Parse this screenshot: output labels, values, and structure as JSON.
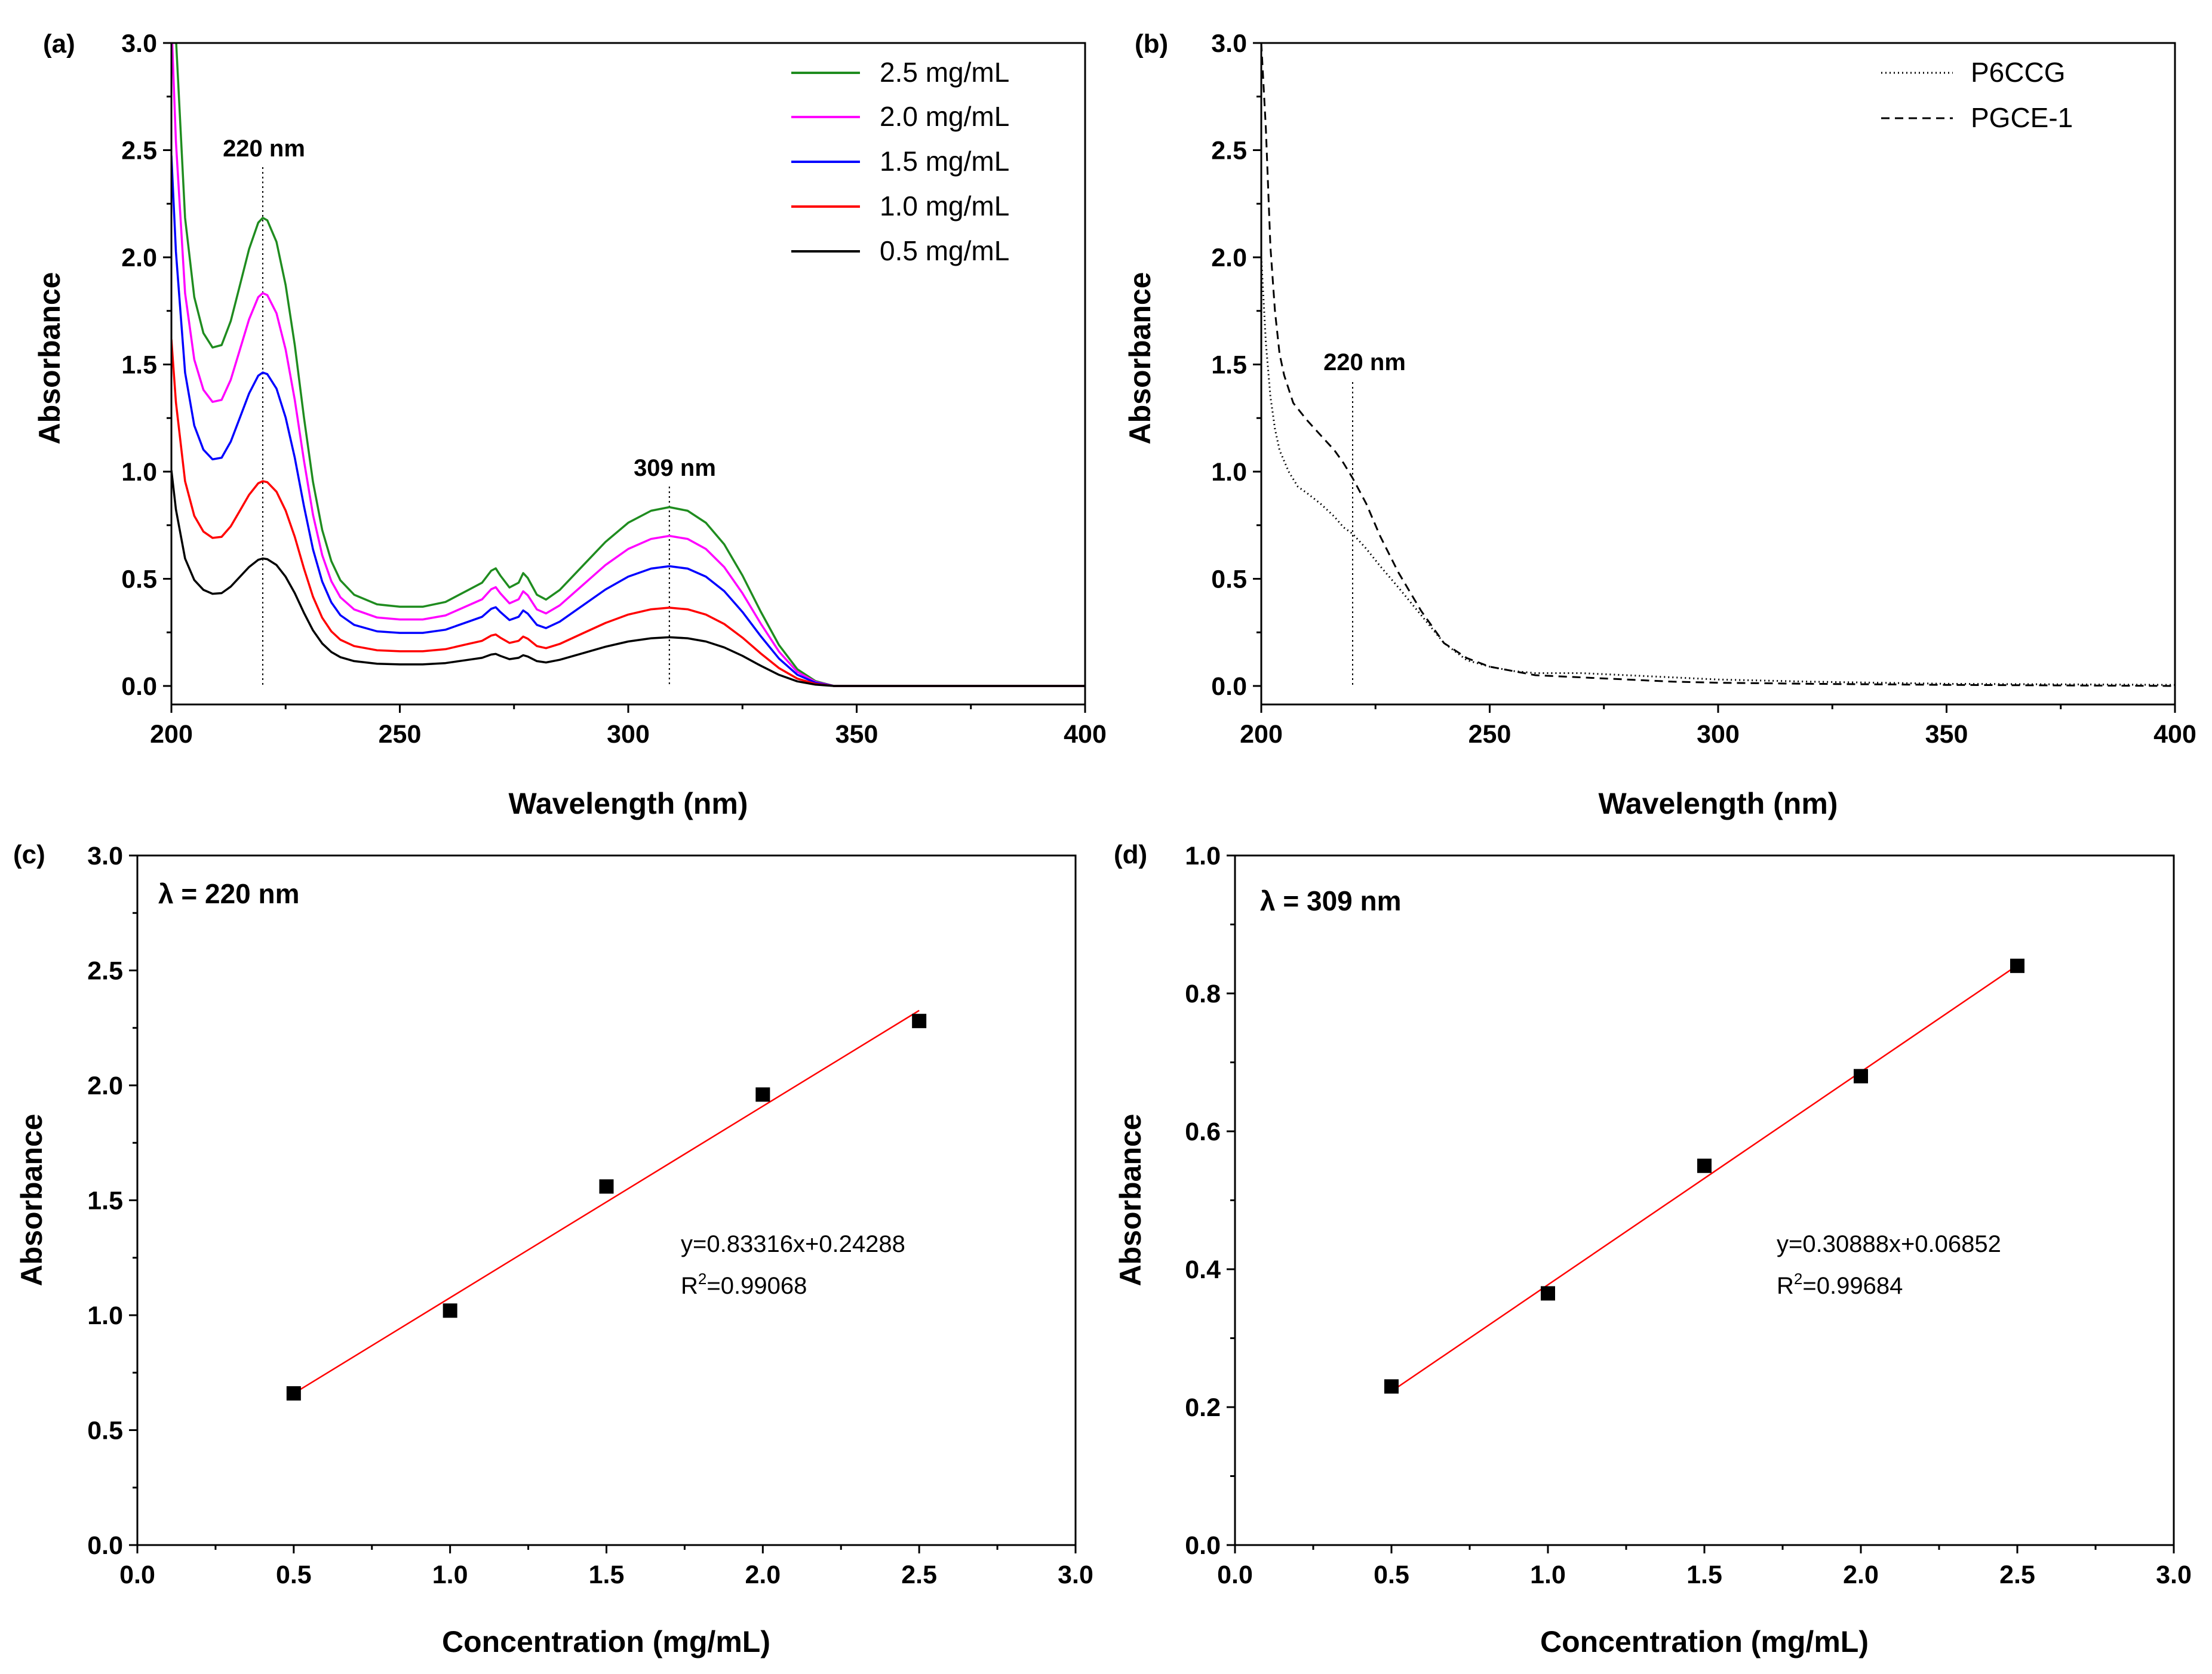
{
  "figure": {
    "colors": {
      "s25": "#1f8c1f",
      "s20": "#ff00ff",
      "s15": "#0000ff",
      "s10": "#ff0000",
      "s05": "#000000",
      "fit": "#ff0000",
      "marker": "#000000"
    }
  },
  "chart_data": [
    {
      "panel": "(a)",
      "type": "line",
      "xlabel": "Wavelength (nm)",
      "ylabel": "Absorbance",
      "xlim": [
        200,
        400
      ],
      "ylim": [
        0,
        3.0
      ],
      "xticks": [
        "200",
        "250",
        "300",
        "350",
        "400"
      ],
      "yticks": [
        "0.0",
        "0.5",
        "1.0",
        "1.5",
        "2.0",
        "2.5",
        "3.0"
      ],
      "legend_position": "top-right",
      "annotations": [
        {
          "text": "220 nm",
          "x": 220
        },
        {
          "text": "309 nm",
          "x": 309
        }
      ],
      "base_shape": [
        [
          200,
          3.3
        ],
        [
          201,
          2.7
        ],
        [
          203,
          1.95
        ],
        [
          205,
          1.62
        ],
        [
          207,
          1.47
        ],
        [
          209,
          1.41
        ],
        [
          211,
          1.42
        ],
        [
          213,
          1.52
        ],
        [
          215,
          1.67
        ],
        [
          217,
          1.82
        ],
        [
          219,
          1.93
        ],
        [
          220,
          1.95
        ],
        [
          221,
          1.94
        ],
        [
          223,
          1.85
        ],
        [
          225,
          1.67
        ],
        [
          227,
          1.42
        ],
        [
          229,
          1.12
        ],
        [
          231,
          0.85
        ],
        [
          233,
          0.65
        ],
        [
          235,
          0.52
        ],
        [
          237,
          0.44
        ],
        [
          240,
          0.38
        ],
        [
          245,
          0.34
        ],
        [
          250,
          0.33
        ],
        [
          255,
          0.33
        ],
        [
          260,
          0.35
        ],
        [
          265,
          0.4
        ],
        [
          268,
          0.43
        ],
        [
          270,
          0.48
        ],
        [
          271,
          0.49
        ],
        [
          272,
          0.46
        ],
        [
          274,
          0.41
        ],
        [
          276,
          0.43
        ],
        [
          277,
          0.47
        ],
        [
          278,
          0.45
        ],
        [
          280,
          0.38
        ],
        [
          282,
          0.36
        ],
        [
          285,
          0.4
        ],
        [
          290,
          0.5
        ],
        [
          295,
          0.6
        ],
        [
          300,
          0.68
        ],
        [
          305,
          0.73
        ],
        [
          309,
          0.745
        ],
        [
          313,
          0.73
        ],
        [
          317,
          0.68
        ],
        [
          321,
          0.59
        ],
        [
          325,
          0.46
        ],
        [
          329,
          0.31
        ],
        [
          333,
          0.17
        ],
        [
          337,
          0.07
        ],
        [
          341,
          0.02
        ],
        [
          345,
          0.0
        ],
        [
          350,
          0.0
        ],
        [
          400,
          0.0
        ]
      ],
      "series": [
        {
          "name": "2.5 mg/mL",
          "color_key": "s25",
          "scale": 1.12
        },
        {
          "name": "2.0 mg/mL",
          "color_key": "s20",
          "scale": 0.94
        },
        {
          "name": "1.5 mg/mL",
          "color_key": "s15",
          "scale": 0.75
        },
        {
          "name": "1.0 mg/mL",
          "color_key": "s10",
          "scale": 0.49
        },
        {
          "name": "0.5 mg/mL",
          "color_key": "s05",
          "scale": 0.305
        }
      ]
    },
    {
      "panel": "(b)",
      "type": "line",
      "xlabel": "Wavelength (nm)",
      "ylabel": "Absorbance",
      "xlim": [
        200,
        400
      ],
      "ylim": [
        0,
        3.0
      ],
      "xticks": [
        "200",
        "250",
        "300",
        "350",
        "400"
      ],
      "yticks": [
        "0.0",
        "0.5",
        "1.0",
        "1.5",
        "2.0",
        "2.5",
        "3.0"
      ],
      "legend_position": "top-right",
      "annotations": [
        {
          "text": "220 nm",
          "x": 220
        }
      ],
      "series": [
        {
          "name": "P6CCG",
          "style": "dotted",
          "x": [
            200,
            201,
            202,
            203,
            204,
            206,
            208,
            210,
            213,
            216,
            218,
            220,
            223,
            226,
            230,
            235,
            240,
            245,
            250,
            255,
            260,
            270,
            280,
            290,
            300,
            320,
            350,
            400
          ],
          "y": [
            2.0,
            1.6,
            1.35,
            1.2,
            1.1,
            1.0,
            0.93,
            0.9,
            0.85,
            0.79,
            0.74,
            0.71,
            0.64,
            0.56,
            0.46,
            0.33,
            0.2,
            0.12,
            0.09,
            0.07,
            0.06,
            0.06,
            0.05,
            0.04,
            0.03,
            0.02,
            0.01,
            0.005
          ]
        },
        {
          "name": "PGCE-1",
          "style": "dashed",
          "x": [
            200,
            201,
            202,
            203,
            204,
            205,
            207,
            210,
            213,
            216,
            218,
            220,
            223,
            226,
            230,
            235,
            240,
            245,
            250,
            255,
            260,
            270,
            280,
            290,
            300,
            320,
            350,
            400
          ],
          "y": [
            3.0,
            2.6,
            2.05,
            1.75,
            1.55,
            1.45,
            1.32,
            1.24,
            1.17,
            1.1,
            1.04,
            0.97,
            0.85,
            0.7,
            0.53,
            0.35,
            0.2,
            0.13,
            0.09,
            0.07,
            0.05,
            0.04,
            0.03,
            0.02,
            0.015,
            0.01,
            0.005,
            0.0
          ]
        }
      ]
    },
    {
      "panel": "(c)",
      "type": "scatter",
      "xlabel": "Concentration (mg/mL)",
      "ylabel": "Absorbance",
      "xlim": [
        0,
        3.0
      ],
      "ylim": [
        0,
        3.0
      ],
      "xticks": [
        "0.0",
        "0.5",
        "1.0",
        "1.5",
        "2.0",
        "2.5",
        "3.0"
      ],
      "yticks": [
        "0.0",
        "0.5",
        "1.0",
        "1.5",
        "2.0",
        "2.5",
        "3.0"
      ],
      "lambda_label": "λ = 220 nm",
      "equation": "y=0.83316x+0.24288",
      "r2_prefix": "R",
      "r2_sup": "2",
      "r2_value": "=0.99068",
      "x": [
        0.5,
        1.0,
        1.5,
        2.0,
        2.5
      ],
      "y": [
        0.66,
        1.02,
        1.56,
        1.96,
        2.28
      ],
      "fit": {
        "slope": 0.83316,
        "intercept": 0.24288,
        "x_range": [
          0.5,
          2.5
        ]
      }
    },
    {
      "panel": "(d)",
      "type": "scatter",
      "xlabel": "Concentration (mg/mL)",
      "ylabel": "Absorbance",
      "xlim": [
        0,
        3.0
      ],
      "ylim": [
        0,
        1.0
      ],
      "xticks": [
        "0.0",
        "0.5",
        "1.0",
        "1.5",
        "2.0",
        "2.5",
        "3.0"
      ],
      "yticks": [
        "0.0",
        "0.2",
        "0.4",
        "0.6",
        "0.8",
        "1.0"
      ],
      "lambda_label": "λ = 309 nm",
      "equation": "y=0.30888x+0.06852",
      "r2_prefix": "R",
      "r2_sup": "2",
      "r2_value": "=0.99684",
      "x": [
        0.5,
        1.0,
        1.5,
        2.0,
        2.5
      ],
      "y": [
        0.23,
        0.365,
        0.55,
        0.68,
        0.84
      ],
      "fit": {
        "slope": 0.30888,
        "intercept": 0.06852,
        "x_range": [
          0.5,
          2.5
        ]
      }
    }
  ]
}
